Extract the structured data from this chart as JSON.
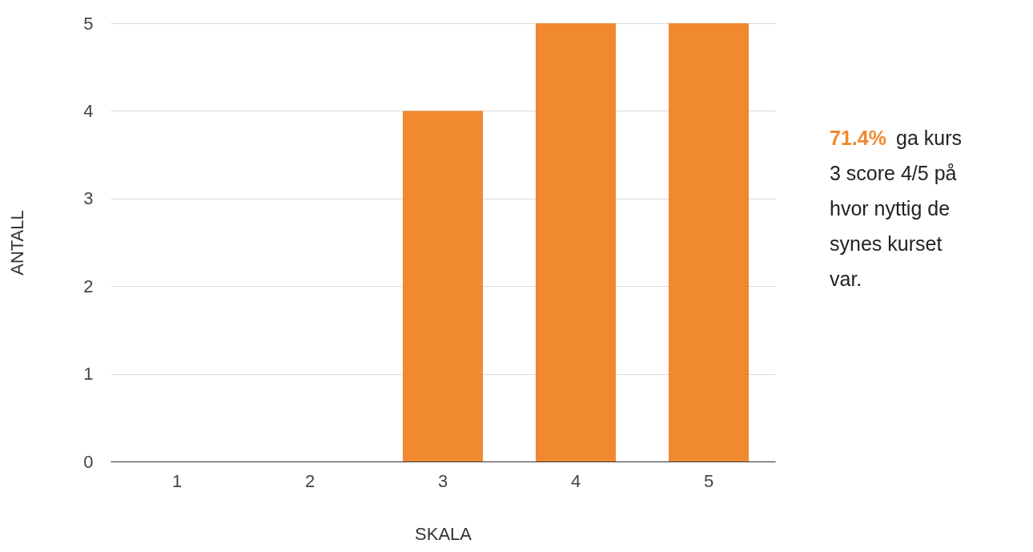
{
  "chart_data": {
    "type": "bar",
    "xlabel": "SKALA",
    "ylabel": "ANTALL",
    "categories": [
      "1",
      "2",
      "3",
      "4",
      "5"
    ],
    "series": [
      {
        "color": "#f0892f",
        "values": [
          0,
          0,
          4,
          5,
          5
        ]
      }
    ],
    "ylim": [
      0,
      5
    ],
    "yticks": [
      0,
      1,
      2,
      3,
      4,
      5
    ],
    "grid": "y",
    "legend": false,
    "annotations": [
      "71.4% ga kurs 3 score 4/5 på hvor nyttig de synes kurset var."
    ]
  }
}
